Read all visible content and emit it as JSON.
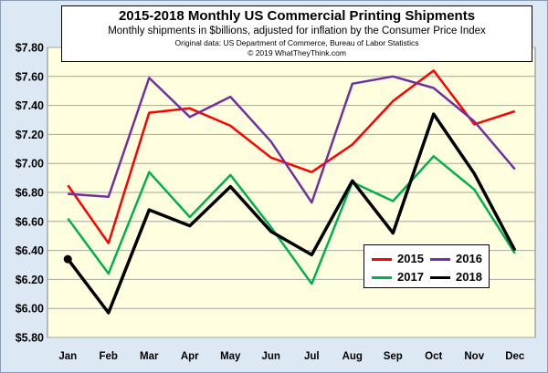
{
  "chart_data": {
    "type": "line",
    "title": "2015-2018 Monthly US Commercial Printing Shipments",
    "subtitle": "Monthly shipments in $billions, adjusted for inflation by the Consumer Price Index",
    "source": "Original data: US Department of Commerce, Bureau of Labor Statistics",
    "copyright": "© 2019 WhatTheyThink.com",
    "categories": [
      "Jan",
      "Feb",
      "Mar",
      "Apr",
      "May",
      "Jun",
      "Jul",
      "Aug",
      "Sep",
      "Oct",
      "Nov",
      "Dec"
    ],
    "ylim": [
      5.8,
      7.8
    ],
    "yticks": [
      "$5.80",
      "$6.00",
      "$6.20",
      "$6.40",
      "$6.60",
      "$6.80",
      "$7.00",
      "$7.20",
      "$7.40",
      "$7.60",
      "$7.80"
    ],
    "grid": "horizontal",
    "legend_position": "bottom-right",
    "series": [
      {
        "name": "2015",
        "color": "#ff0000",
        "values": [
          6.85,
          6.45,
          7.35,
          7.38,
          7.26,
          7.04,
          6.94,
          7.13,
          7.43,
          7.64,
          7.27,
          7.36
        ]
      },
      {
        "name": "2016",
        "color": "#7030a0",
        "values": [
          6.79,
          6.77,
          7.59,
          7.32,
          7.46,
          7.15,
          6.73,
          7.55,
          7.6,
          7.52,
          7.29,
          6.96
        ]
      },
      {
        "name": "2017",
        "color": "#00b050",
        "values": [
          6.62,
          6.24,
          6.94,
          6.63,
          6.92,
          6.56,
          6.17,
          6.87,
          6.74,
          7.05,
          6.82,
          6.38
        ]
      },
      {
        "name": "2018",
        "color": "#000000",
        "values": [
          6.34,
          5.97,
          6.68,
          6.57,
          6.84,
          6.53,
          6.37,
          6.88,
          6.52,
          7.34,
          6.93,
          6.4
        ]
      }
    ]
  }
}
